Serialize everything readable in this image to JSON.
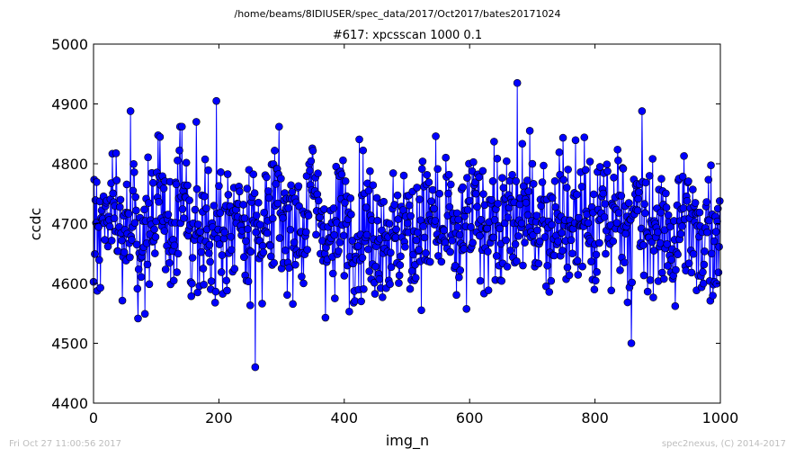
{
  "figure": {
    "suptitle": "/home/beams/8IDIUSER/spec_data/2017/Oct2017/bates20171024",
    "footer_left": "Fri Oct 27 11:00:56 2017",
    "footer_right": "spec2nexus, (C) 2014-2017"
  },
  "colors": {
    "series": "#0000ff",
    "footer_text": "#bdbdbd",
    "axes": "#000000"
  },
  "chart_data": {
    "type": "line",
    "title": "#617: xpcsscan 1000 0.1",
    "xlabel": "img_n",
    "ylabel": "ccdc",
    "xlim": [
      0,
      1000
    ],
    "ylim": [
      4400,
      5000
    ],
    "xticks": [
      0,
      200,
      400,
      600,
      800,
      1000
    ],
    "yticks": [
      4400,
      4500,
      4600,
      4700,
      4800,
      4900,
      5000
    ],
    "grid": false,
    "legend": "none",
    "marker": "circle",
    "n_points": 1000,
    "x_start": 0,
    "x_step": 1,
    "y_sampled": [
      4705,
      4630,
      4770,
      4720,
      4680,
      4595,
      4760,
      4620,
      4565,
      4690,
      4788,
      4820,
      4610,
      4740,
      4840,
      4700,
      4575,
      4810,
      4655,
      4600,
      4720,
      4690,
      4640,
      4820,
      4700,
      4760,
      4650,
      4700,
      4620,
      4890,
      4660,
      4720,
      4760,
      4625,
      4845,
      4820,
      4700,
      4655,
      4560,
      4790,
      4720,
      4660,
      4705,
      4745,
      4610,
      4700,
      4660,
      4655,
      4605,
      4750,
      4610,
      4680,
      4760,
      4660,
      4795,
      4610,
      4700,
      4635,
      4560,
      4690,
      4765,
      4700,
      4720,
      4790,
      4660,
      4650,
      4760,
      4625,
      4825,
      4705,
      4720,
      4780,
      4640,
      4760,
      4855,
      4600,
      4760,
      4720,
      4790,
      4590,
      4705,
      4800,
      4650,
      4870,
      4720,
      4700,
      4760,
      4630,
      4655,
      4745,
      4600,
      4700,
      4560,
      4790,
      4700,
      4640,
      4555,
      4765,
      4615,
      4740
    ],
    "annotated_extremes": [
      {
        "x": 196,
        "y": 4905
      },
      {
        "x": 258,
        "y": 4460
      },
      {
        "x": 676,
        "y": 4935
      },
      {
        "x": 858,
        "y": 4500
      },
      {
        "x": 875,
        "y": 4888
      },
      {
        "x": 59,
        "y": 4888
      },
      {
        "x": 164,
        "y": 4870
      }
    ]
  }
}
